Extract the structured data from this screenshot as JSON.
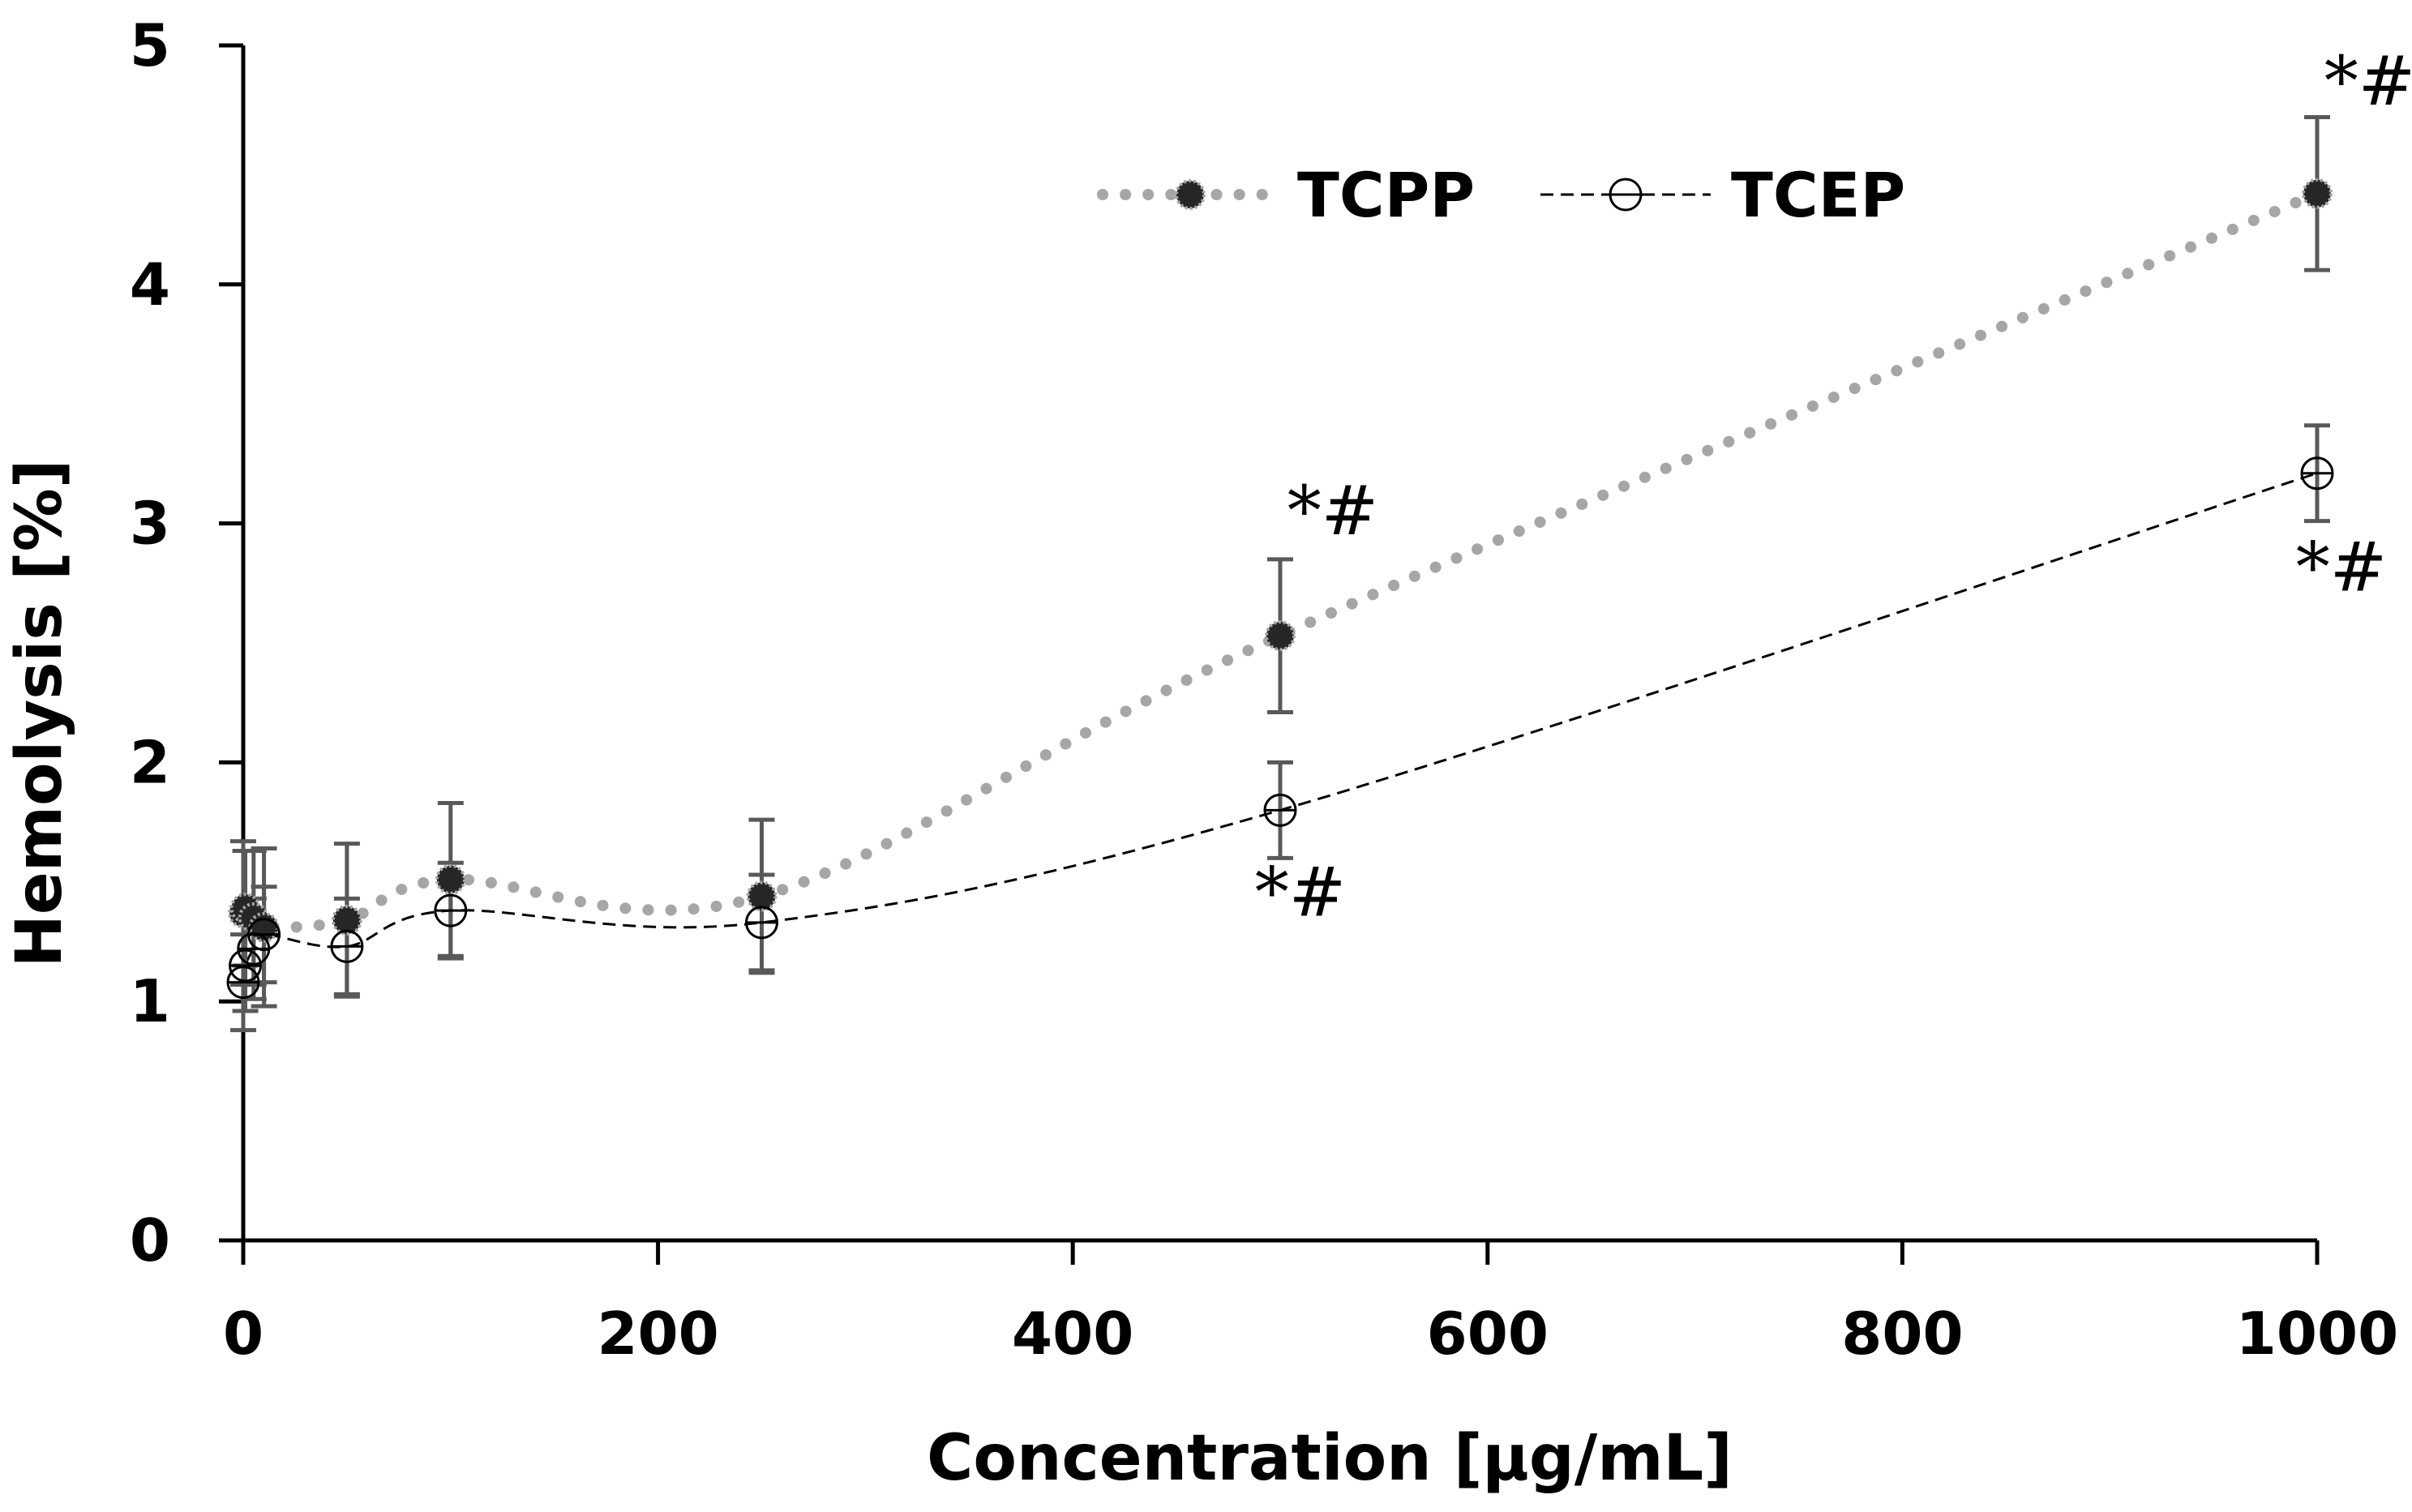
{
  "chart_data": {
    "type": "line",
    "xlabel": "Concentration [µg/mL]",
    "ylabel": "Hemolysis [%]",
    "xlim": [
      0,
      1000
    ],
    "ylim": [
      0,
      5
    ],
    "xticks": [
      "0",
      "200",
      "400",
      "600",
      "800",
      "1000"
    ],
    "yticks": [
      "0",
      "1",
      "2",
      "3",
      "4",
      "5"
    ],
    "legend_position": "top-center",
    "grid": false,
    "series": [
      {
        "name": "TCPP",
        "style": "dotted",
        "marker": "filled-circle",
        "line_color": "#a6a6a6",
        "marker_color": "#262626",
        "x": [
          0,
          1,
          5,
          10,
          50,
          100,
          250,
          500,
          1000
        ],
        "y": [
          1.37,
          1.39,
          1.35,
          1.31,
          1.34,
          1.51,
          1.44,
          2.53,
          4.38
        ],
        "err": [
          0.3,
          0.24,
          0.28,
          0.33,
          0.32,
          0.32,
          0.32,
          0.32,
          0.32
        ]
      },
      {
        "name": "TCEP",
        "style": "dashed",
        "marker": "open-circle",
        "line_color": "#000000",
        "marker_color": "#000000",
        "x": [
          0,
          1,
          5,
          10,
          50,
          100,
          250,
          500,
          1000
        ],
        "y": [
          1.08,
          1.15,
          1.22,
          1.28,
          1.23,
          1.38,
          1.33,
          1.8,
          3.21
        ],
        "err": [
          0.2,
          0.19,
          0.21,
          0.2,
          0.2,
          0.2,
          0.2,
          0.2,
          0.2
        ]
      }
    ],
    "annotations": [
      {
        "text": "*#",
        "series": "TCPP",
        "x": 500
      },
      {
        "text": "*#",
        "series": "TCPP",
        "x": 1000
      },
      {
        "text": "*#",
        "series": "TCEP",
        "x": 500
      },
      {
        "text": "*#",
        "series": "TCEP",
        "x": 1000
      }
    ]
  }
}
